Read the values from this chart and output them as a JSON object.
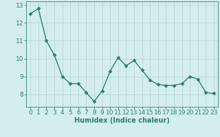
{
  "x": [
    0,
    1,
    2,
    3,
    4,
    5,
    6,
    7,
    8,
    9,
    10,
    11,
    12,
    13,
    14,
    15,
    16,
    17,
    18,
    19,
    20,
    21,
    22,
    23
  ],
  "y": [
    12.5,
    12.8,
    11.0,
    10.2,
    9.0,
    8.6,
    8.6,
    8.1,
    7.6,
    8.2,
    9.3,
    10.05,
    9.6,
    9.9,
    9.35,
    8.8,
    8.55,
    8.5,
    8.5,
    8.6,
    9.0,
    8.85,
    8.1,
    8.05
  ],
  "line_color": "#2e7d6e",
  "marker": "D",
  "markersize": 2.5,
  "linewidth": 1.0,
  "bg_color": "#d4eeec",
  "grid_color": "#b8d8d5",
  "xlabel": "Humidex (Indice chaleur)",
  "xlabel_fontsize": 7,
  "tick_color": "#2e7d6e",
  "tick_fontsize": 6.5,
  "ylim": [
    7.3,
    13.2
  ],
  "xlim": [
    -0.5,
    23.5
  ],
  "yticks": [
    8,
    9,
    10,
    11,
    12,
    13
  ],
  "xticks": [
    0,
    1,
    2,
    3,
    4,
    5,
    6,
    7,
    8,
    9,
    10,
    11,
    12,
    13,
    14,
    15,
    16,
    17,
    18,
    19,
    20,
    21,
    22,
    23
  ]
}
